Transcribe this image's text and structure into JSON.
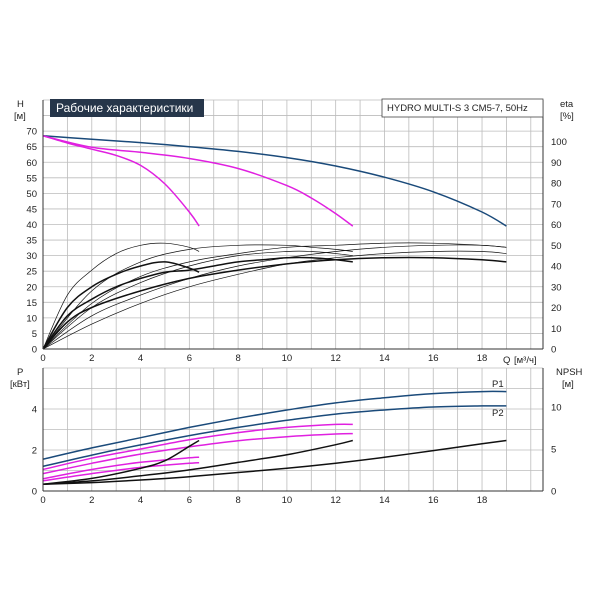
{
  "chart_data": [
    {
      "type": "line",
      "title": "Рабочие характеристики",
      "model": "HYDRO MULTI-S 3 CM5-7, 50Hz",
      "left_axis": {
        "label": "H",
        "unit": "[м]",
        "ylim": [
          0,
          80
        ],
        "ticks": [
          0,
          5,
          10,
          15,
          20,
          25,
          30,
          35,
          40,
          45,
          50,
          55,
          60,
          65,
          70
        ]
      },
      "right_axis": {
        "label": "eta",
        "unit": "[%]",
        "ylim": [
          0,
          120
        ],
        "ticks": [
          0,
          10,
          20,
          30,
          40,
          50,
          60,
          70,
          80,
          90,
          100
        ]
      },
      "x_axis": {
        "label": "Q",
        "unit": "[м³/ч]",
        "xlim": [
          0,
          20.5
        ],
        "ticks": [
          0,
          2,
          4,
          6,
          8,
          10,
          12,
          14,
          16,
          18
        ]
      },
      "colors": {
        "head_main": "#1a4a7a",
        "head_reduced": "#e020e0",
        "eta": "#111111",
        "title_bg": "#26364a"
      },
      "series": [
        {
          "kind": "head",
          "color": "head_main",
          "x": [
            0,
            2,
            4,
            6,
            8,
            10,
            12,
            14,
            16,
            18,
            19
          ],
          "y": [
            68.5,
            67.4,
            66.3,
            65.0,
            63.5,
            61.5,
            58.8,
            55.2,
            50.5,
            44.0,
            39.5
          ]
        },
        {
          "kind": "head",
          "color": "head_reduced",
          "x": [
            0,
            2,
            4,
            6,
            8,
            10,
            11,
            12,
            12.7
          ],
          "y": [
            68.5,
            64.8,
            63.2,
            61.2,
            58.0,
            52.5,
            48.5,
            43.5,
            39.5
          ]
        },
        {
          "kind": "head",
          "color": "head_reduced",
          "x": [
            0,
            1,
            2,
            3,
            4,
            5,
            6,
            6.4
          ],
          "y": [
            68.5,
            66.2,
            64.2,
            62.2,
            59.0,
            53.0,
            44.0,
            39.5
          ]
        },
        {
          "kind": "eta",
          "color": "eta",
          "axis": "right",
          "x": [
            0,
            1,
            2,
            4,
            6,
            8,
            10,
            12,
            14,
            16,
            18,
            19
          ],
          "y": [
            0,
            13,
            20,
            28,
            34,
            38,
            41,
            43,
            44,
            44,
            43,
            42
          ]
        },
        {
          "kind": "eta",
          "color": "eta",
          "axis": "right",
          "x": [
            0,
            1,
            2,
            3,
            4,
            5,
            6,
            7,
            8,
            9,
            10,
            11,
            12,
            12.7
          ],
          "y": [
            0,
            16,
            24,
            30,
            34,
            37,
            38,
            40,
            42,
            43,
            44,
            44,
            43,
            42
          ]
        },
        {
          "kind": "eta",
          "color": "eta",
          "axis": "right",
          "x": [
            0,
            1,
            2,
            3,
            4,
            5,
            6,
            6.4
          ],
          "y": [
            0,
            20,
            30,
            36,
            40,
            42,
            39,
            37
          ]
        },
        {
          "kind": "eta_thin",
          "color": "eta",
          "axis": "right",
          "x": [
            0,
            2,
            4,
            6,
            8,
            10,
            12,
            14,
            16,
            18,
            19
          ],
          "y": [
            0,
            22,
            35,
            42,
            46,
            49,
            50,
            51,
            51,
            50,
            49
          ]
        },
        {
          "kind": "eta_thin",
          "color": "eta",
          "axis": "right",
          "x": [
            0,
            2,
            4,
            6,
            8,
            10,
            11,
            12,
            12.7
          ],
          "y": [
            0,
            28,
            42,
            48,
            50,
            50,
            49,
            48,
            47
          ]
        },
        {
          "kind": "eta_thin",
          "color": "eta",
          "axis": "right",
          "x": [
            0,
            1,
            2,
            3,
            4,
            5,
            6,
            6.4
          ],
          "y": [
            0,
            26,
            38,
            46,
            50,
            51,
            49,
            47
          ]
        },
        {
          "kind": "eta_thin",
          "color": "eta",
          "axis": "right",
          "x": [
            0,
            2,
            4,
            6,
            8,
            10,
            12,
            14,
            16,
            18,
            19
          ],
          "y": [
            0,
            16,
            26,
            34,
            40,
            44,
            47,
            49,
            50,
            50,
            49
          ]
        },
        {
          "kind": "eta_thin",
          "color": "eta",
          "axis": "right",
          "x": [
            0,
            2,
            4,
            6,
            8,
            10,
            11,
            12,
            12.7
          ],
          "y": [
            0,
            20,
            32,
            40,
            45,
            47,
            47,
            46,
            45
          ]
        },
        {
          "kind": "eta_thin",
          "color": "eta",
          "axis": "right",
          "x": [
            0,
            2,
            4,
            6,
            8,
            10,
            12,
            14,
            16,
            18,
            19
          ],
          "y": [
            0,
            12,
            22,
            30,
            36,
            41,
            44,
            46,
            47,
            47,
            46
          ]
        }
      ]
    },
    {
      "type": "line",
      "left_axis": {
        "label": "P",
        "unit": "[кВт]",
        "ylim": [
          0,
          6
        ],
        "ticks": [
          0,
          2,
          4
        ]
      },
      "right_axis": {
        "label": "NPSH",
        "unit": "[м]",
        "ylim": [
          0,
          14.6
        ],
        "ticks": [
          0,
          5,
          10
        ]
      },
      "x_axis": {
        "xlim": [
          0,
          20.5
        ],
        "ticks": [
          0,
          2,
          4,
          6,
          8,
          10,
          12,
          14,
          16,
          18
        ]
      },
      "labels": [
        "P1",
        "P2"
      ],
      "series": [
        {
          "name": "P1",
          "color": "head_main",
          "x": [
            0,
            2,
            4,
            6,
            8,
            10,
            12,
            14,
            16,
            18,
            19
          ],
          "y": [
            1.55,
            2.1,
            2.6,
            3.1,
            3.55,
            3.95,
            4.3,
            4.55,
            4.75,
            4.85,
            4.85
          ]
        },
        {
          "name": "P2",
          "color": "head_main",
          "x": [
            0,
            2,
            4,
            6,
            8,
            10,
            12,
            14,
            16,
            18,
            19
          ],
          "y": [
            1.2,
            1.75,
            2.25,
            2.7,
            3.1,
            3.45,
            3.75,
            3.95,
            4.1,
            4.15,
            4.15
          ]
        },
        {
          "kind": "P_reduced",
          "color": "head_reduced",
          "x": [
            0,
            2,
            4,
            6,
            8,
            10,
            12,
            12.7
          ],
          "y": [
            1.05,
            1.6,
            2.05,
            2.5,
            2.85,
            3.1,
            3.25,
            3.25
          ]
        },
        {
          "kind": "P_reduced",
          "color": "head_reduced",
          "x": [
            0,
            2,
            4,
            6,
            8,
            10,
            12,
            12.7
          ],
          "y": [
            0.85,
            1.35,
            1.8,
            2.15,
            2.45,
            2.65,
            2.78,
            2.8
          ]
        },
        {
          "kind": "P_reduced",
          "color": "head_reduced",
          "x": [
            0,
            2,
            4,
            6,
            6.4
          ],
          "y": [
            0.6,
            1.05,
            1.4,
            1.62,
            1.65
          ]
        },
        {
          "kind": "P_reduced",
          "color": "head_reduced",
          "x": [
            0,
            2,
            4,
            6,
            6.4
          ],
          "y": [
            0.5,
            0.85,
            1.15,
            1.35,
            1.38
          ]
        },
        {
          "kind": "npsh",
          "color": "eta",
          "axis": "right",
          "x": [
            0,
            2,
            4,
            6,
            8,
            10,
            12,
            14,
            16,
            18,
            19
          ],
          "y": [
            0.8,
            1.0,
            1.3,
            1.7,
            2.2,
            2.7,
            3.3,
            4.0,
            4.8,
            5.6,
            6.0
          ]
        },
        {
          "kind": "npsh",
          "color": "eta",
          "axis": "right",
          "x": [
            0,
            2,
            4,
            6,
            8,
            10,
            12,
            12.7
          ],
          "y": [
            0.8,
            1.2,
            1.8,
            2.5,
            3.4,
            4.3,
            5.5,
            6.0
          ]
        },
        {
          "kind": "npsh",
          "color": "eta",
          "axis": "right",
          "x": [
            0,
            2,
            4,
            5,
            6,
            6.4
          ],
          "y": [
            0.8,
            1.5,
            2.7,
            3.6,
            5.3,
            6.0
          ]
        }
      ]
    }
  ]
}
